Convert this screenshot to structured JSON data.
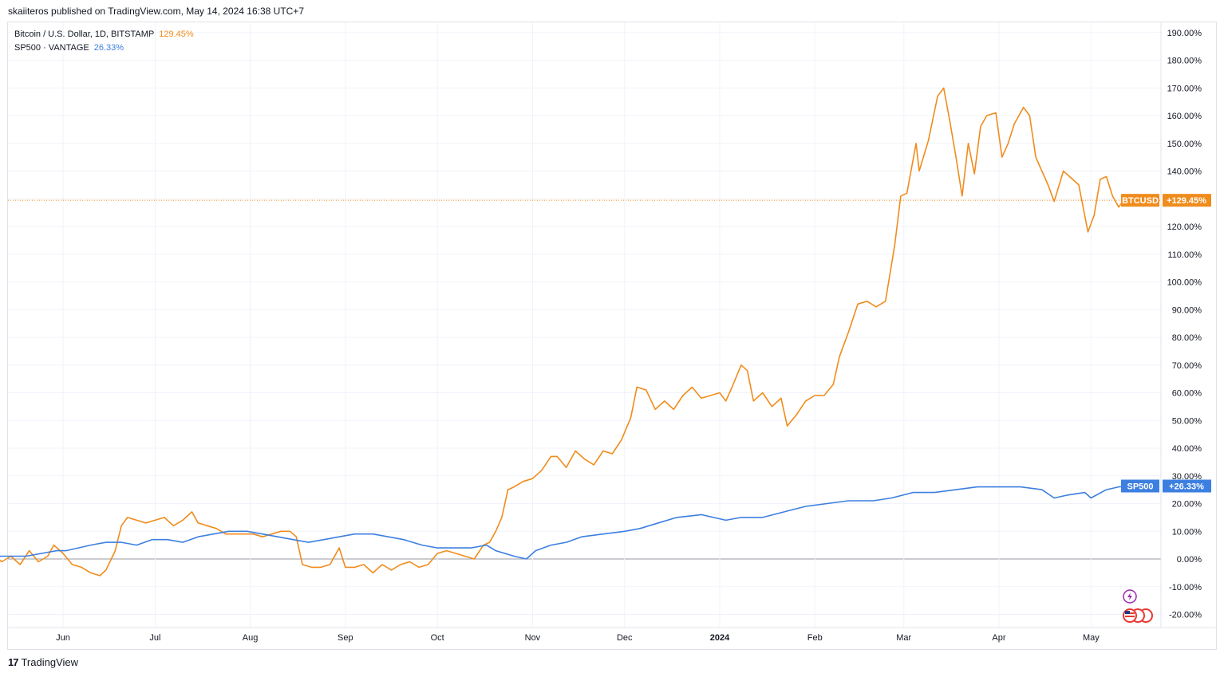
{
  "header": {
    "published": "skaiiteros published on TradingView.com, May 14, 2024 16:38 UTC+7"
  },
  "legend": [
    {
      "label": "Bitcoin / U.S. Dollar, 1D, BITSTAMP",
      "value": "129.45%",
      "color": "#f08c1c"
    },
    {
      "label": "SP500 · VANTAGE",
      "value": "26.33%",
      "color": "#3c7fe0"
    }
  ],
  "footer": {
    "logo": "17",
    "brand": "TradingView"
  },
  "colors": {
    "btc": "#f08c1c",
    "spx": "#3c7fe0",
    "grid": "#f0f3fa",
    "axis_text": "#131722",
    "zero_line": "#9598a1"
  },
  "chart_data": {
    "type": "line",
    "title": "",
    "y_unit": "%",
    "ylim": [
      -25,
      192
    ],
    "y_ticks": [
      "190.00%",
      "180.00%",
      "170.00%",
      "160.00%",
      "150.00%",
      "140.00%",
      "130.00%",
      "120.00%",
      "110.00%",
      "100.00%",
      "90.00%",
      "80.00%",
      "70.00%",
      "60.00%",
      "50.00%",
      "40.00%",
      "30.00%",
      "20.00%",
      "10.00%",
      "0.00%",
      "-10.00%",
      "-20.00%"
    ],
    "y_tick_values": [
      190,
      180,
      170,
      160,
      150,
      140,
      130,
      120,
      110,
      100,
      90,
      80,
      70,
      60,
      50,
      40,
      30,
      20,
      10,
      0,
      -10,
      -20
    ],
    "x_ticks": [
      {
        "label": "Jun",
        "date": "2023-06-01",
        "bold": false
      },
      {
        "label": "Jul",
        "date": "2023-07-01",
        "bold": false
      },
      {
        "label": "Aug",
        "date": "2023-08-01",
        "bold": false
      },
      {
        "label": "Sep",
        "date": "2023-09-01",
        "bold": false
      },
      {
        "label": "Oct",
        "date": "2023-10-01",
        "bold": false
      },
      {
        "label": "Nov",
        "date": "2023-11-01",
        "bold": false
      },
      {
        "label": "Dec",
        "date": "2023-12-01",
        "bold": false
      },
      {
        "label": "2024",
        "date": "2024-01-01",
        "bold": true
      },
      {
        "label": "Feb",
        "date": "2024-02-01",
        "bold": false
      },
      {
        "label": "Mar",
        "date": "2024-03-01",
        "bold": false
      },
      {
        "label": "Apr",
        "date": "2024-04-01",
        "bold": false
      },
      {
        "label": "May",
        "date": "2024-05-01",
        "bold": false
      }
    ],
    "x_range": [
      "2023-05-07",
      "2024-06-01"
    ],
    "price_line": {
      "value": 129.45,
      "label_left": "BTCUSD",
      "label_right": "+129.45%"
    },
    "series": [
      {
        "name": "BTCUSD",
        "badge": "+129.45%",
        "points": [
          [
            "2023-05-07",
            0
          ],
          [
            "2023-05-09",
            2
          ],
          [
            "2023-05-12",
            -1
          ],
          [
            "2023-05-15",
            1
          ],
          [
            "2023-05-18",
            -2
          ],
          [
            "2023-05-21",
            3
          ],
          [
            "2023-05-24",
            -1
          ],
          [
            "2023-05-27",
            1
          ],
          [
            "2023-05-29",
            5
          ],
          [
            "2023-06-01",
            2
          ],
          [
            "2023-06-04",
            -2
          ],
          [
            "2023-06-07",
            -3
          ],
          [
            "2023-06-10",
            -5
          ],
          [
            "2023-06-13",
            -6
          ],
          [
            "2023-06-15",
            -4
          ],
          [
            "2023-06-18",
            3
          ],
          [
            "2023-06-20",
            12
          ],
          [
            "2023-06-22",
            15
          ],
          [
            "2023-06-25",
            14
          ],
          [
            "2023-06-28",
            13
          ],
          [
            "2023-07-01",
            14
          ],
          [
            "2023-07-04",
            15
          ],
          [
            "2023-07-07",
            12
          ],
          [
            "2023-07-10",
            14
          ],
          [
            "2023-07-13",
            17
          ],
          [
            "2023-07-15",
            13
          ],
          [
            "2023-07-18",
            12
          ],
          [
            "2023-07-21",
            11
          ],
          [
            "2023-07-24",
            9
          ],
          [
            "2023-07-27",
            9
          ],
          [
            "2023-07-30",
            9
          ],
          [
            "2023-08-02",
            9
          ],
          [
            "2023-08-05",
            8
          ],
          [
            "2023-08-08",
            9
          ],
          [
            "2023-08-11",
            10
          ],
          [
            "2023-08-14",
            10
          ],
          [
            "2023-08-16",
            8
          ],
          [
            "2023-08-18",
            -2
          ],
          [
            "2023-08-21",
            -3
          ],
          [
            "2023-08-24",
            -3
          ],
          [
            "2023-08-27",
            -2
          ],
          [
            "2023-08-30",
            4
          ],
          [
            "2023-09-01",
            -3
          ],
          [
            "2023-09-04",
            -3
          ],
          [
            "2023-09-07",
            -2
          ],
          [
            "2023-09-10",
            -5
          ],
          [
            "2023-09-13",
            -2
          ],
          [
            "2023-09-16",
            -4
          ],
          [
            "2023-09-19",
            -2
          ],
          [
            "2023-09-22",
            -1
          ],
          [
            "2023-09-25",
            -3
          ],
          [
            "2023-09-28",
            -2
          ],
          [
            "2023-10-01",
            2
          ],
          [
            "2023-10-04",
            3
          ],
          [
            "2023-10-07",
            2
          ],
          [
            "2023-10-10",
            1
          ],
          [
            "2023-10-13",
            0
          ],
          [
            "2023-10-16",
            5
          ],
          [
            "2023-10-18",
            6
          ],
          [
            "2023-10-20",
            10
          ],
          [
            "2023-10-22",
            15
          ],
          [
            "2023-10-24",
            25
          ],
          [
            "2023-10-26",
            26
          ],
          [
            "2023-10-29",
            28
          ],
          [
            "2023-11-01",
            29
          ],
          [
            "2023-11-04",
            32
          ],
          [
            "2023-11-07",
            37
          ],
          [
            "2023-11-09",
            37
          ],
          [
            "2023-11-12",
            33
          ],
          [
            "2023-11-15",
            39
          ],
          [
            "2023-11-18",
            36
          ],
          [
            "2023-11-21",
            34
          ],
          [
            "2023-11-24",
            39
          ],
          [
            "2023-11-27",
            38
          ],
          [
            "2023-11-30",
            43
          ],
          [
            "2023-12-03",
            51
          ],
          [
            "2023-12-05",
            62
          ],
          [
            "2023-12-08",
            61
          ],
          [
            "2023-12-11",
            54
          ],
          [
            "2023-12-14",
            57
          ],
          [
            "2023-12-17",
            54
          ],
          [
            "2023-12-20",
            59
          ],
          [
            "2023-12-23",
            62
          ],
          [
            "2023-12-26",
            58
          ],
          [
            "2023-12-29",
            59
          ],
          [
            "2024-01-01",
            60
          ],
          [
            "2024-01-03",
            57
          ],
          [
            "2024-01-05",
            62
          ],
          [
            "2024-01-08",
            70
          ],
          [
            "2024-01-10",
            68
          ],
          [
            "2024-01-12",
            57
          ],
          [
            "2024-01-15",
            60
          ],
          [
            "2024-01-18",
            55
          ],
          [
            "2024-01-21",
            58
          ],
          [
            "2024-01-23",
            48
          ],
          [
            "2024-01-26",
            52
          ],
          [
            "2024-01-29",
            57
          ],
          [
            "2024-02-01",
            59
          ],
          [
            "2024-02-04",
            59
          ],
          [
            "2024-02-07",
            63
          ],
          [
            "2024-02-09",
            73
          ],
          [
            "2024-02-12",
            82
          ],
          [
            "2024-02-15",
            92
          ],
          [
            "2024-02-18",
            93
          ],
          [
            "2024-02-21",
            91
          ],
          [
            "2024-02-24",
            93
          ],
          [
            "2024-02-27",
            113
          ],
          [
            "2024-02-29",
            131
          ],
          [
            "2024-03-02",
            132
          ],
          [
            "2024-03-05",
            150
          ],
          [
            "2024-03-06",
            140
          ],
          [
            "2024-03-09",
            151
          ],
          [
            "2024-03-12",
            167
          ],
          [
            "2024-03-14",
            170
          ],
          [
            "2024-03-16",
            158
          ],
          [
            "2024-03-18",
            145
          ],
          [
            "2024-03-20",
            131
          ],
          [
            "2024-03-22",
            150
          ],
          [
            "2024-03-24",
            139
          ],
          [
            "2024-03-26",
            156
          ],
          [
            "2024-03-28",
            160
          ],
          [
            "2024-03-31",
            161
          ],
          [
            "2024-04-02",
            145
          ],
          [
            "2024-04-04",
            150
          ],
          [
            "2024-04-06",
            157
          ],
          [
            "2024-04-09",
            163
          ],
          [
            "2024-04-11",
            160
          ],
          [
            "2024-04-13",
            145
          ],
          [
            "2024-04-15",
            140
          ],
          [
            "2024-04-17",
            135
          ],
          [
            "2024-04-19",
            129
          ],
          [
            "2024-04-22",
            140
          ],
          [
            "2024-04-24",
            138
          ],
          [
            "2024-04-27",
            135
          ],
          [
            "2024-04-30",
            118
          ],
          [
            "2024-05-02",
            124
          ],
          [
            "2024-05-04",
            137
          ],
          [
            "2024-05-06",
            138
          ],
          [
            "2024-05-08",
            131
          ],
          [
            "2024-05-10",
            127
          ],
          [
            "2024-05-12",
            130
          ],
          [
            "2024-05-14",
            129.45
          ]
        ]
      },
      {
        "name": "SP500",
        "badge": "+26.33%",
        "points": [
          [
            "2023-05-07",
            0
          ],
          [
            "2023-05-10",
            1
          ],
          [
            "2023-05-15",
            1
          ],
          [
            "2023-05-20",
            1
          ],
          [
            "2023-05-25",
            2
          ],
          [
            "2023-05-30",
            3
          ],
          [
            "2023-06-02",
            3
          ],
          [
            "2023-06-06",
            4
          ],
          [
            "2023-06-10",
            5
          ],
          [
            "2023-06-15",
            6
          ],
          [
            "2023-06-20",
            6
          ],
          [
            "2023-06-25",
            5
          ],
          [
            "2023-06-30",
            7
          ],
          [
            "2023-07-05",
            7
          ],
          [
            "2023-07-10",
            6
          ],
          [
            "2023-07-15",
            8
          ],
          [
            "2023-07-20",
            9
          ],
          [
            "2023-07-25",
            10
          ],
          [
            "2023-07-31",
            10
          ],
          [
            "2023-08-05",
            9
          ],
          [
            "2023-08-10",
            8
          ],
          [
            "2023-08-15",
            7
          ],
          [
            "2023-08-20",
            6
          ],
          [
            "2023-08-25",
            7
          ],
          [
            "2023-08-30",
            8
          ],
          [
            "2023-09-04",
            9
          ],
          [
            "2023-09-10",
            9
          ],
          [
            "2023-09-15",
            8
          ],
          [
            "2023-09-20",
            7
          ],
          [
            "2023-09-26",
            5
          ],
          [
            "2023-10-01",
            4
          ],
          [
            "2023-10-06",
            4
          ],
          [
            "2023-10-12",
            4
          ],
          [
            "2023-10-17",
            5
          ],
          [
            "2023-10-20",
            3
          ],
          [
            "2023-10-26",
            1
          ],
          [
            "2023-10-30",
            0
          ],
          [
            "2023-11-02",
            3
          ],
          [
            "2023-11-07",
            5
          ],
          [
            "2023-11-12",
            6
          ],
          [
            "2023-11-17",
            8
          ],
          [
            "2023-11-24",
            9
          ],
          [
            "2023-12-01",
            10
          ],
          [
            "2023-12-06",
            11
          ],
          [
            "2023-12-12",
            13
          ],
          [
            "2023-12-18",
            15
          ],
          [
            "2023-12-26",
            16
          ],
          [
            "2024-01-03",
            14
          ],
          [
            "2024-01-08",
            15
          ],
          [
            "2024-01-15",
            15
          ],
          [
            "2024-01-22",
            17
          ],
          [
            "2024-01-29",
            19
          ],
          [
            "2024-02-05",
            20
          ],
          [
            "2024-02-12",
            21
          ],
          [
            "2024-02-20",
            21
          ],
          [
            "2024-02-26",
            22
          ],
          [
            "2024-03-04",
            24
          ],
          [
            "2024-03-11",
            24
          ],
          [
            "2024-03-18",
            25
          ],
          [
            "2024-03-25",
            26
          ],
          [
            "2024-04-01",
            26
          ],
          [
            "2024-04-08",
            26
          ],
          [
            "2024-04-15",
            25
          ],
          [
            "2024-04-19",
            22
          ],
          [
            "2024-04-23",
            23
          ],
          [
            "2024-04-29",
            24
          ],
          [
            "2024-05-01",
            22
          ],
          [
            "2024-05-06",
            25
          ],
          [
            "2024-05-10",
            26
          ],
          [
            "2024-05-14",
            26.33
          ]
        ]
      }
    ]
  }
}
